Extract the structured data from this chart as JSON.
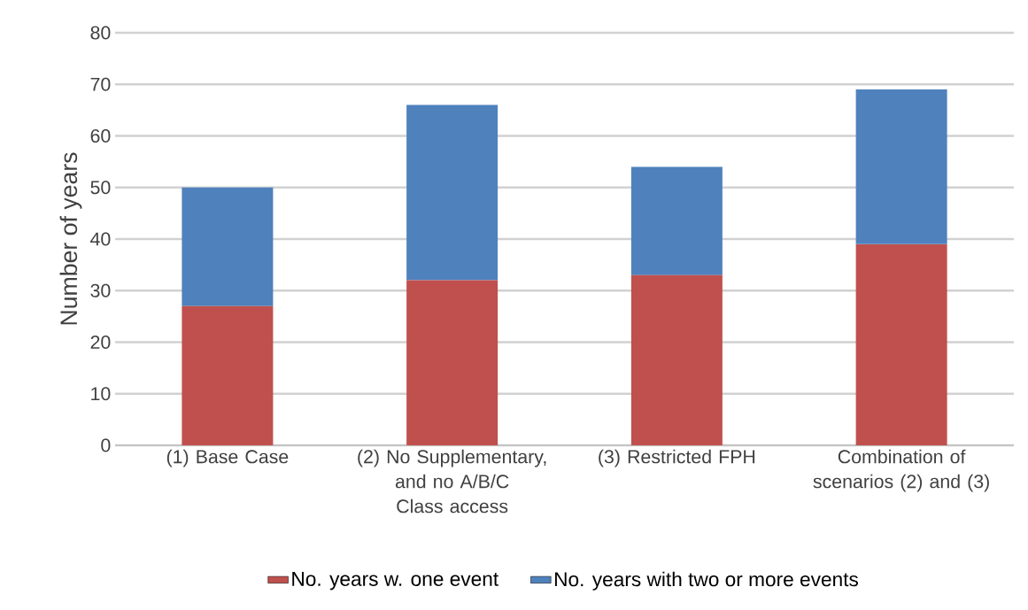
{
  "chart_data": {
    "type": "bar",
    "stacked": true,
    "ylabel": "Number of years",
    "categories": [
      "(1) Base Case",
      "(2) No Supplementary, and no A/B/C Class access",
      "(3) Restricted FPH",
      "Combination of scenarios (2) and (3)"
    ],
    "series": [
      {
        "name": "No. years w. one event",
        "color": "#c0504d",
        "values": [
          27,
          32,
          33,
          39
        ]
      },
      {
        "name": "No. years with two or more events",
        "color": "#4f81bd",
        "values": [
          23,
          34,
          21,
          30
        ]
      }
    ],
    "ylim": [
      0,
      80
    ],
    "yticks": [
      0,
      10,
      20,
      30,
      40,
      50,
      60,
      70,
      80
    ],
    "grid": "y",
    "legend": "bottom"
  }
}
